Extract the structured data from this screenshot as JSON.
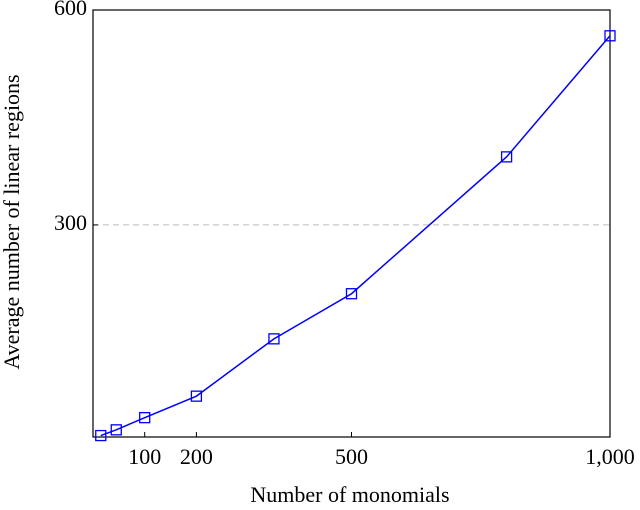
{
  "chart_data": {
    "type": "line",
    "x_label": "Number of monomials",
    "y_label": "Average number of linear regions",
    "x": [
      15,
      45,
      100,
      200,
      350,
      500,
      800,
      1000
    ],
    "series": [
      {
        "color": "#0000ff",
        "values": [
          6,
          14,
          31,
          61,
          141,
          204,
          395,
          564
        ]
      }
    ],
    "xlim": [
      0,
      1000
    ],
    "ylim": [
      4,
      600
    ],
    "xticks": [
      100,
      200,
      500,
      {
        "value": 1000,
        "label": "1,000"
      }
    ],
    "yticks": [
      300,
      600
    ],
    "grid": true
  }
}
